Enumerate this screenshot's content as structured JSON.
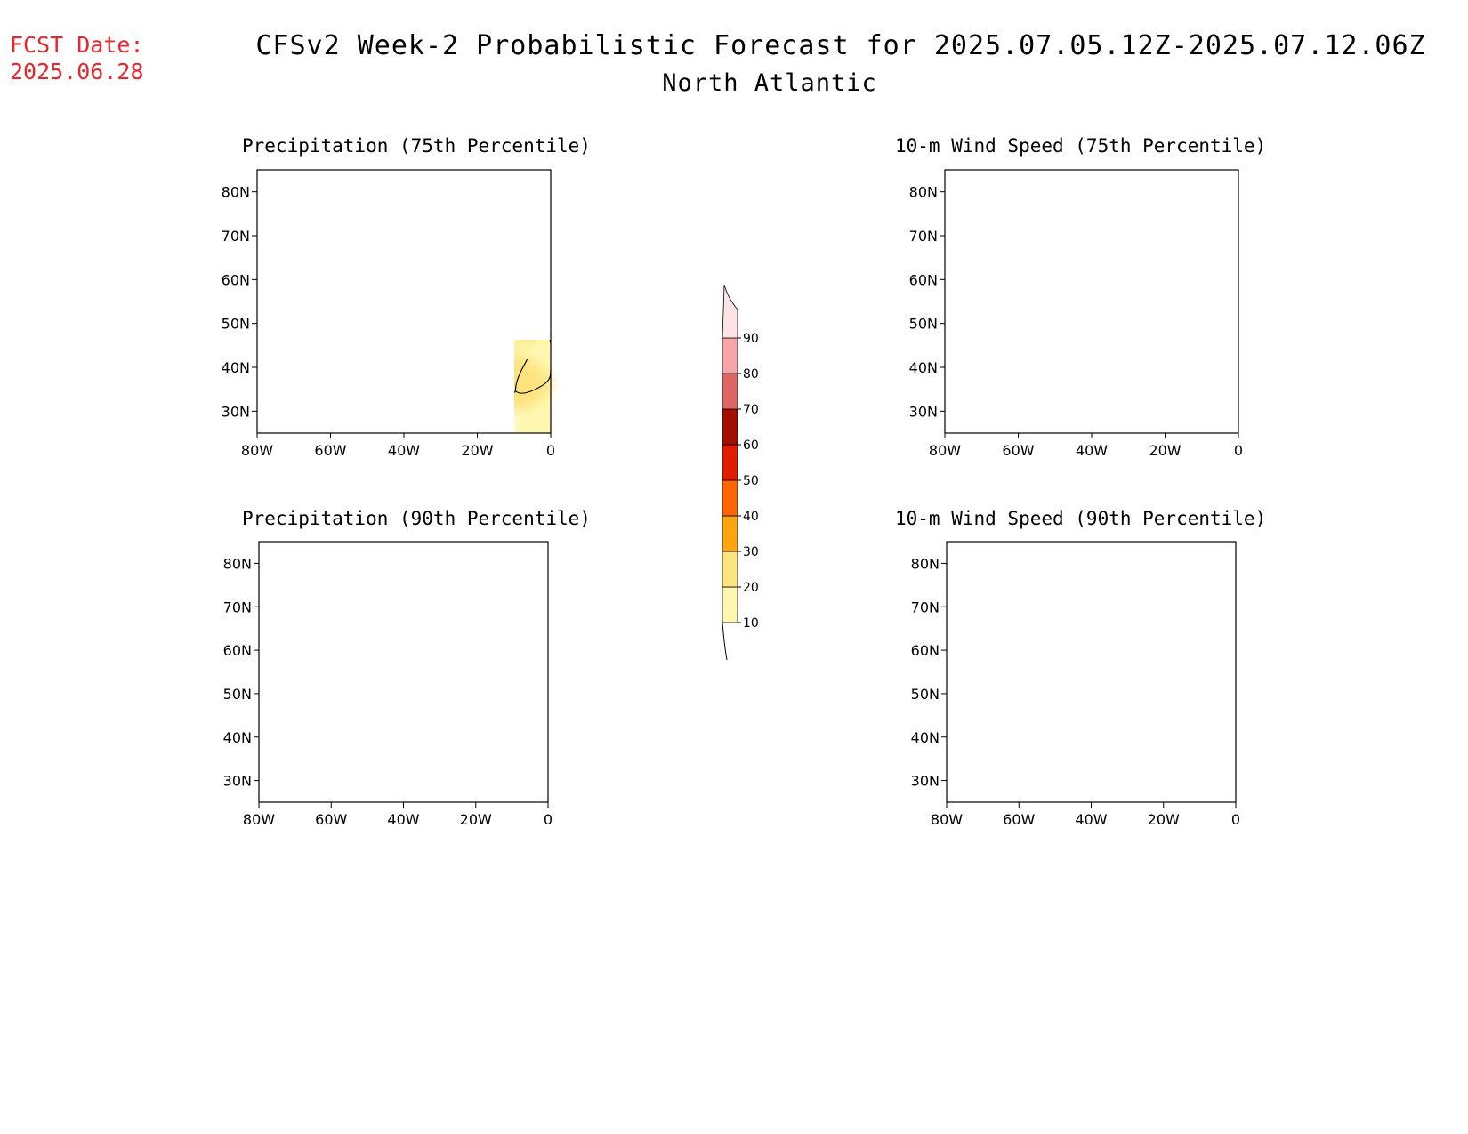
{
  "header": {
    "fcst_label": "FCST Date:",
    "fcst_date": "2025.06.28",
    "title": "CFSv2 Week-2 Probabilistic Forecast for 2025.07.05.12Z-2025.07.12.06Z",
    "subtitle": "North Atlantic"
  },
  "panels": [
    {
      "id": "precip75",
      "title": "Precipitation (75th Percentile)"
    },
    {
      "id": "wind75",
      "title": "10-m Wind Speed (75th Percentile)"
    },
    {
      "id": "precip90",
      "title": "Precipitation (90th Percentile)"
    },
    {
      "id": "wind90",
      "title": "10-m Wind Speed (90th Percentile)"
    }
  ],
  "axes": {
    "lat_labels": [
      "80N",
      "70N",
      "60N",
      "50N",
      "40N",
      "30N"
    ],
    "lon_labels": [
      "80W",
      "60W",
      "40W",
      "20W",
      "0"
    ]
  },
  "colorbar": {
    "levels": [
      "10",
      "20",
      "30",
      "40",
      "50",
      "60",
      "70",
      "80",
      "90"
    ],
    "colors": [
      "#fff7b0",
      "#fde37e",
      "#fda50f",
      "#fc6500",
      "#e01d00",
      "#a50d00",
      "#e06666",
      "#f6a6a8",
      "#fde3e5"
    ]
  }
}
